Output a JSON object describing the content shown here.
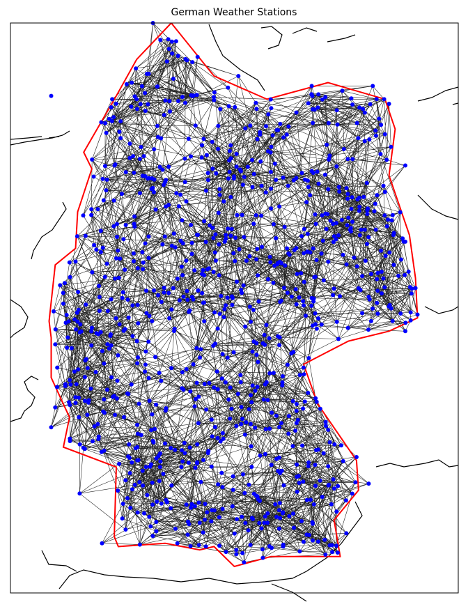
{
  "title": "German Weather Stations",
  "colors": {
    "station": "#0000ff",
    "edge": "#000000",
    "boundary": "#ff0000",
    "coastline": "#000000",
    "background": "#ffffff"
  },
  "map": {
    "lon_range": [
      5.0,
      16.0
    ],
    "lat_range": [
      46.9,
      55.5
    ],
    "projection": "cylindrical"
  },
  "chart_data": {
    "type": "scatter",
    "title": "German Weather Stations",
    "xlabel": "",
    "ylabel": "",
    "series_name": "",
    "approx_station_count": 1000,
    "sample_stations": [
      [
        8.5,
        55.5
      ],
      [
        6.0,
        54.4
      ],
      [
        7.5,
        54.35
      ],
      [
        8.1,
        54.35
      ],
      [
        10.6,
        54.7
      ],
      [
        12.4,
        54.55
      ],
      [
        13.9,
        54.55
      ],
      [
        14.3,
        54.28
      ],
      [
        14.7,
        53.35
      ],
      [
        14.2,
        52.95
      ],
      [
        14.7,
        52.2
      ],
      [
        14.95,
        51.5
      ],
      [
        15.0,
        51.1
      ],
      [
        14.7,
        50.85
      ],
      [
        6.6,
        51.9
      ],
      [
        6.1,
        50.65
      ],
      [
        6.35,
        50.05
      ],
      [
        6.1,
        49.7
      ],
      [
        6.0,
        49.4
      ],
      [
        6.7,
        48.4
      ],
      [
        7.25,
        47.65
      ],
      [
        9.1,
        47.65
      ],
      [
        9.8,
        47.6
      ],
      [
        10.7,
        47.5
      ],
      [
        11.2,
        47.43
      ],
      [
        11.7,
        47.6
      ],
      [
        12.9,
        47.62
      ],
      [
        13.25,
        47.8
      ],
      [
        13.8,
        48.55
      ],
      [
        13.5,
        48.95
      ],
      [
        12.0,
        49.35
      ],
      [
        12.2,
        50.3
      ],
      [
        10.0,
        50.0
      ],
      [
        9.0,
        51.5
      ],
      [
        11.4,
        52.7
      ],
      [
        10.1,
        53.6
      ],
      [
        8.8,
        53.1
      ],
      [
        13.4,
        52.5
      ],
      [
        12.4,
        51.35
      ],
      [
        7.0,
        50.9
      ],
      [
        8.7,
        50.1
      ],
      [
        9.2,
        48.8
      ],
      [
        11.6,
        48.15
      ],
      [
        10.9,
        49.45
      ],
      [
        7.6,
        51.95
      ]
    ],
    "boundary_points": [
      [
        8.95,
        55.5
      ],
      [
        10.0,
        54.7
      ],
      [
        11.3,
        54.35
      ],
      [
        12.8,
        54.6
      ],
      [
        14.2,
        54.35
      ],
      [
        14.45,
        53.9
      ],
      [
        14.3,
        53.2
      ],
      [
        14.8,
        52.3
      ],
      [
        14.95,
        51.65
      ],
      [
        15.0,
        51.05
      ],
      [
        14.3,
        50.85
      ],
      [
        13.3,
        50.7
      ],
      [
        12.2,
        50.35
      ],
      [
        12.55,
        49.75
      ],
      [
        13.5,
        48.9
      ],
      [
        13.55,
        48.45
      ],
      [
        12.95,
        48.0
      ],
      [
        13.1,
        47.45
      ],
      [
        11.4,
        47.45
      ],
      [
        10.5,
        47.3
      ],
      [
        10.0,
        47.6
      ],
      [
        9.65,
        47.55
      ],
      [
        8.8,
        47.65
      ],
      [
        7.65,
        47.6
      ],
      [
        7.55,
        47.75
      ],
      [
        7.6,
        48.8
      ],
      [
        6.3,
        49.1
      ],
      [
        6.45,
        49.55
      ],
      [
        6.0,
        50.15
      ],
      [
        6.0,
        50.75
      ],
      [
        5.95,
        51.0
      ],
      [
        6.1,
        51.85
      ],
      [
        6.6,
        52.1
      ],
      [
        6.65,
        52.65
      ],
      [
        7.0,
        53.3
      ],
      [
        6.8,
        53.55
      ],
      [
        7.6,
        54.4
      ],
      [
        8.1,
        54.95
      ],
      [
        8.95,
        55.5
      ]
    ]
  }
}
